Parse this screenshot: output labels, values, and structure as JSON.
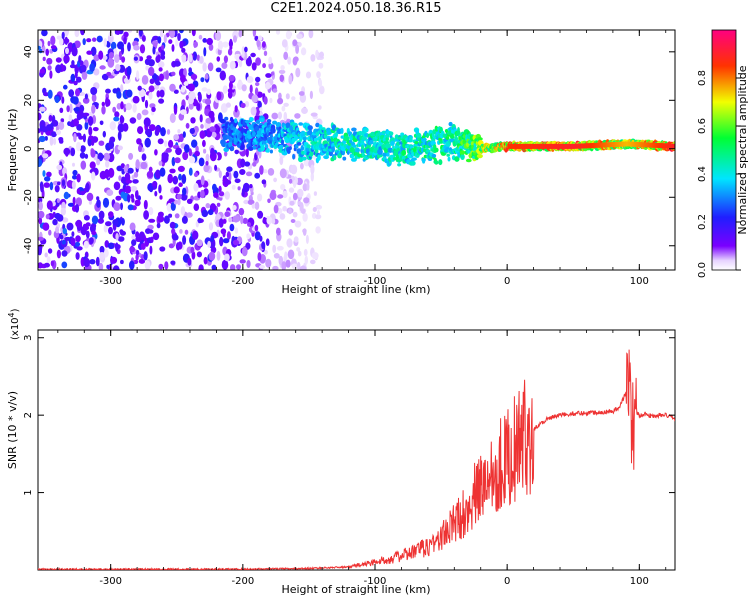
{
  "page_title": "C2E1.2024.050.18.36.R15",
  "chart_data": [
    {
      "type": "heatmap",
      "xlabel": "Height of straight line (km)",
      "ylabel": "Frequency (Hz)",
      "xlim": [
        -355,
        127
      ],
      "ylim": [
        -50,
        49
      ],
      "xticks": [
        -300,
        -200,
        -100,
        0,
        100
      ],
      "yticks": [
        -40,
        -20,
        0,
        20,
        40
      ],
      "colorbar": {
        "label": "Normalized spectral amplitude",
        "range": [
          0,
          1
        ],
        "ticks": [
          "0.0",
          "0.2",
          "0.4",
          "0.6",
          "0.8"
        ],
        "colormap": "rainbow (white-violet-blue-cyan-green-yellow-red-magenta)"
      },
      "ridge": {
        "description_values": [
          {
            "height": -200,
            "freq": 6,
            "amp": 0.35
          },
          {
            "height": -150,
            "freq": 3,
            "amp": 0.45
          },
          {
            "height": -120,
            "freq": 2,
            "amp": 0.5
          },
          {
            "height": -80,
            "freq": 0,
            "amp": 0.5
          },
          {
            "height": -40,
            "freq": 3,
            "amp": 0.55
          },
          {
            "height": -20,
            "freq": 0,
            "amp": 0.7
          },
          {
            "height": 0,
            "freq": 1,
            "amp": 0.85
          },
          {
            "height": 50,
            "freq": 1,
            "amp": 0.9
          },
          {
            "height": 90,
            "freq": 2,
            "amp": 0.75
          },
          {
            "height": 127,
            "freq": 1,
            "amp": 0.9
          }
        ]
      }
    },
    {
      "type": "line",
      "xlabel": "Height of straight line (km)",
      "ylabel": "SNR (10 * v/v)",
      "exponent_label": "(x10",
      "exponent_power": "4",
      "exponent_close": ")",
      "xlim": [
        -355,
        127
      ],
      "ylim": [
        0,
        3.1
      ],
      "xticks": [
        -300,
        -200,
        -100,
        0,
        100
      ],
      "yticks": [
        1,
        2,
        3
      ],
      "series": [
        {
          "color": "#ee3333",
          "x": [
            -355,
            -300,
            -200,
            -150,
            -120,
            -100,
            -80,
            -60,
            -50,
            -40,
            -30,
            -25,
            -20,
            -15,
            -10,
            -5,
            0,
            10,
            20,
            30,
            40,
            50,
            60,
            70,
            80,
            85,
            90,
            93,
            95,
            97,
            100,
            105,
            110,
            115,
            120,
            127
          ],
          "values": [
            0.01,
            0.01,
            0.01,
            0.02,
            0.04,
            0.1,
            0.18,
            0.3,
            0.42,
            0.6,
            0.8,
            0.95,
            1.05,
            1.2,
            1.3,
            1.38,
            1.45,
            1.65,
            1.82,
            1.95,
            2.0,
            2.02,
            2.03,
            2.04,
            2.05,
            2.1,
            2.3,
            2.2,
            1.8,
            2.05,
            2.0,
            2.02,
            1.98,
            2.0,
            2.0,
            1.95
          ]
        }
      ]
    }
  ]
}
